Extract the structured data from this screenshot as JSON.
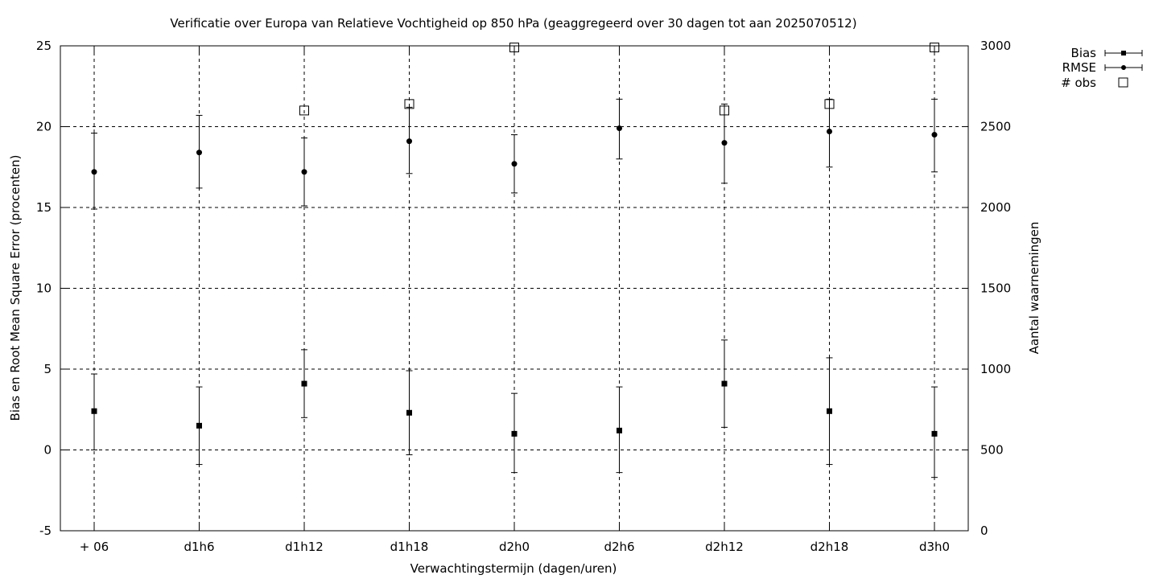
{
  "chart_data": {
    "type": "scatter",
    "title": "Verificatie over Europa van Relatieve Vochtigheid op 850 hPa (geaggregeerd over 30 dagen tot aan 2025070512)",
    "xlabel": "Verwachtingstermijn (dagen/uren)",
    "ylabel": "Bias en Root Mean Square Error (procenten)",
    "y2label": "Aantal waarnemingen",
    "categories": [
      "+ 06",
      "d1h6",
      "d1h12",
      "d1h18",
      "d2h0",
      "d2h6",
      "d2h12",
      "d2h18",
      "d3h0"
    ],
    "ylim": [
      -5,
      25
    ],
    "yticks": [
      "-5",
      "0",
      "5",
      "10",
      "15",
      "20",
      "25"
    ],
    "y2lim": [
      0,
      3000
    ],
    "y2ticks": [
      "0",
      "500",
      "1000",
      "1500",
      "2000",
      "2500",
      "3000"
    ],
    "grid": true,
    "legend_position": "top-right",
    "series": [
      {
        "name": "Bias",
        "marker": "square",
        "axis": "left",
        "values": [
          2.4,
          1.5,
          4.1,
          2.3,
          1.0,
          1.2,
          4.1,
          2.4,
          1.0
        ],
        "err_low": [
          0.0,
          -0.9,
          2.0,
          -0.3,
          -1.4,
          -1.4,
          1.4,
          -0.9,
          -1.7
        ],
        "err_high": [
          4.7,
          3.9,
          6.2,
          4.9,
          3.5,
          3.9,
          6.8,
          5.7,
          3.9
        ]
      },
      {
        "name": "RMSE",
        "marker": "circle",
        "axis": "left",
        "values": [
          17.2,
          18.4,
          17.2,
          19.1,
          17.7,
          19.9,
          19.0,
          19.7,
          19.5
        ],
        "err_low": [
          14.9,
          16.2,
          15.1,
          17.1,
          15.9,
          18.0,
          16.5,
          17.5,
          17.2
        ],
        "err_high": [
          19.6,
          20.7,
          19.3,
          21.2,
          19.5,
          21.7,
          21.4,
          21.7,
          21.7
        ]
      },
      {
        "name": "# obs",
        "marker": "open-square",
        "axis": "right",
        "values": [
          null,
          null,
          2600,
          2640,
          2990,
          null,
          2600,
          2640,
          2990
        ]
      }
    ]
  }
}
